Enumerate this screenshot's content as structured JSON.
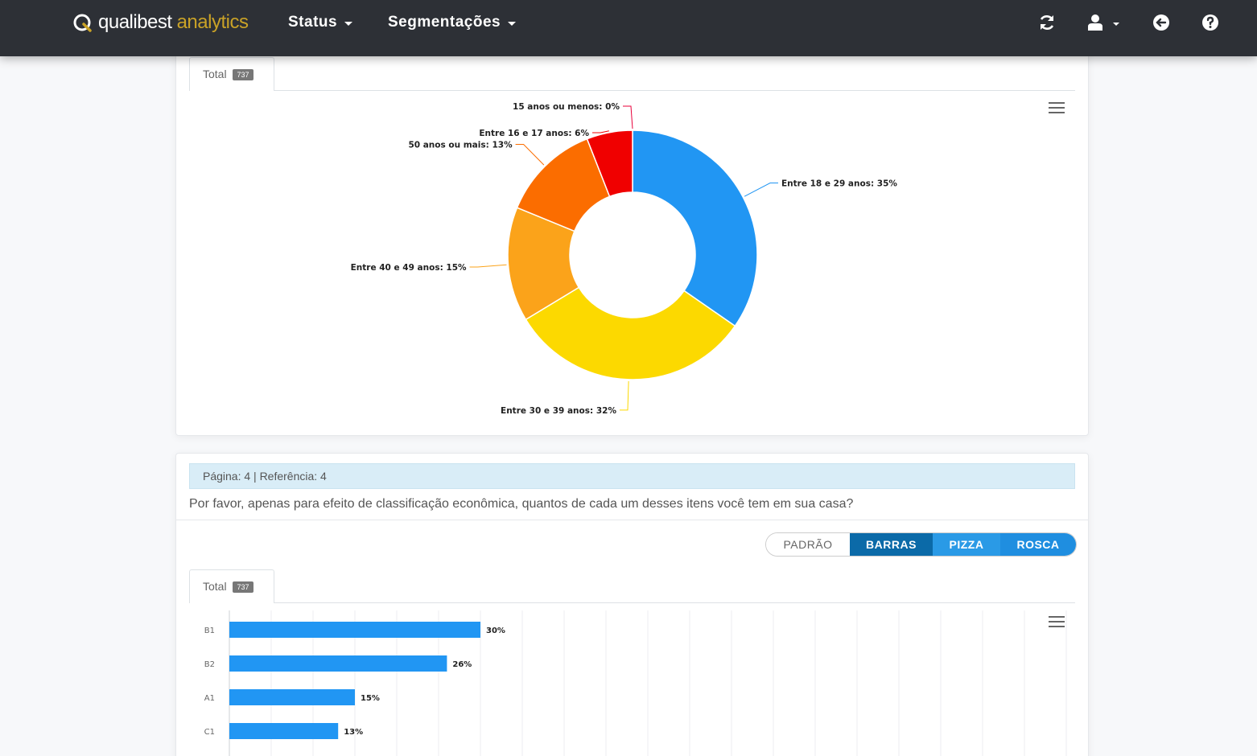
{
  "app": {
    "logo_main": "qualibest",
    "logo_accent": "analytics",
    "nav": {
      "status_label": "Status",
      "segmentacoes_label": "Segmentações"
    }
  },
  "card1": {
    "tab_label": "Total",
    "tab_count": "737"
  },
  "card2": {
    "info": "Página: 4 | Referência: 4",
    "question": "Por favor, apenas para efeito de classificação econômica, quantos de cada um desses itens você tem em sua casa?",
    "buttons": {
      "padrao": "PADRÃO",
      "barras": "BARRAS",
      "pizza": "PIZZA",
      "rosca": "ROSCA"
    },
    "tab_label": "Total",
    "tab_count": "737"
  },
  "colors": {
    "topbar": "#2d3036",
    "accent": "#c9a227",
    "bar": "#2196f3",
    "donut": [
      "#2196f3",
      "#fcd900",
      "#fba31a",
      "#fb6d00",
      "#f00000",
      "#e8003a"
    ]
  },
  "chart_data": [
    {
      "type": "pie",
      "subtype": "donut",
      "slices": [
        {
          "label": "Entre 18 e 29 anos: 35%",
          "value": 35
        },
        {
          "label": "Entre 30 e 39 anos: 32%",
          "value": 32
        },
        {
          "label": "Entre 40 e 49 anos: 15%",
          "value": 15
        },
        {
          "label": "50 anos ou mais: 13%",
          "value": 13
        },
        {
          "label": "Entre 16 e 17 anos: 6%",
          "value": 6
        },
        {
          "label": "15 anos ou menos: 0%",
          "value": 0
        }
      ]
    },
    {
      "type": "bar",
      "orientation": "horizontal",
      "categories": [
        "B1",
        "B2",
        "A1",
        "C1"
      ],
      "values": [
        30,
        26,
        15,
        13
      ],
      "data_labels": [
        "30%",
        "26%",
        "15%",
        "13%"
      ],
      "grid": true
    }
  ]
}
